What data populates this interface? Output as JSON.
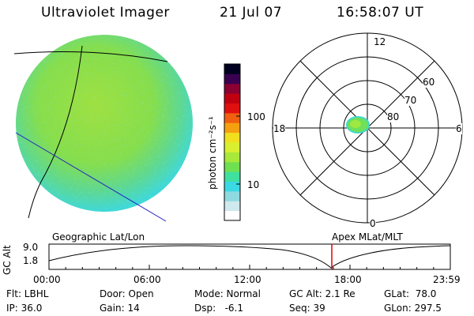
{
  "header": {
    "title": "Ultraviolet Imager",
    "date": "21 Jul 07",
    "time": "16:58:07 UT"
  },
  "colorbar": {
    "label": "photon cm⁻²s⁻¹",
    "tick_100": "100",
    "tick_10": "10",
    "colors": [
      "#ffffff",
      "#cfe9ee",
      "#8fd9e0",
      "#3ad9e4",
      "#3fe0a0",
      "#6fe050",
      "#a8e83a",
      "#d8f030",
      "#f0e020",
      "#f5a010",
      "#f06010",
      "#e01010",
      "#c00010",
      "#8a0030",
      "#3a0050",
      "#000020"
    ]
  },
  "polar": {
    "labels": {
      "top": "12",
      "left": "18",
      "right": "6",
      "bottom": "0"
    },
    "rings": [
      "60",
      "70",
      "80"
    ]
  },
  "timeline": {
    "y_axis_label": "GC Alt",
    "y_top": "9.0",
    "y_bottom": "1.8",
    "left_title": "Geographic Lat/Lon",
    "right_title": "Apex MLat/MLT",
    "ticks": [
      "00:00",
      "06:00",
      "12:00",
      "18:00",
      "23:59"
    ],
    "marker_color": "#e00000"
  },
  "info": {
    "filter": "Flt: LBHL",
    "ip": "IP: 36.0",
    "door": "Door: Open",
    "gain": "Gain: 14",
    "mode": "Mode: Normal",
    "dsp": "Dsp:   -6.1",
    "gc_alt": "GC Alt: 2.1 Re",
    "seq": "Seq: 39",
    "glat": "GLat:  78.0",
    "glon": "GLon: 297.5"
  }
}
